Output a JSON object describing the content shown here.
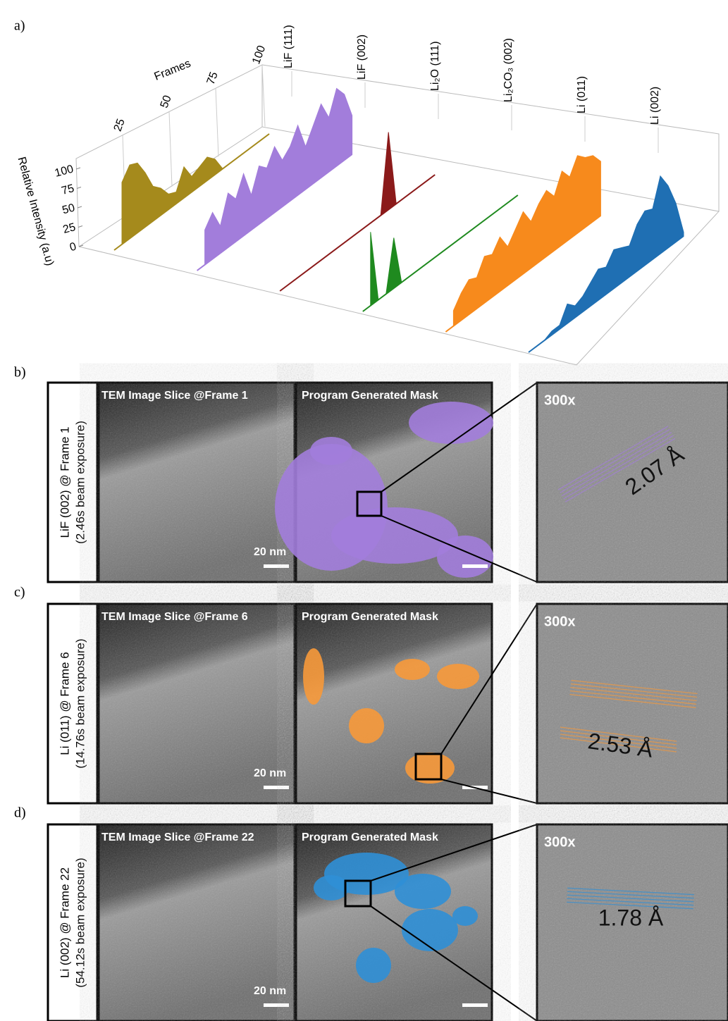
{
  "panel_labels": [
    "a)",
    "b)",
    "c)",
    "d)"
  ],
  "chart_data": {
    "type": "waterfall3d",
    "x_label": "Frames",
    "y_label": "Relative Intensity (a.u)",
    "x": [
      5,
      10,
      15,
      20,
      25,
      30,
      35,
      40,
      45,
      50,
      55,
      60,
      65,
      70,
      75,
      80,
      85,
      90,
      95,
      100
    ],
    "xlim": [
      0,
      100
    ],
    "xticks": [
      25,
      50,
      75,
      100
    ],
    "ylim": [
      0,
      100
    ],
    "yticks": [
      0,
      25,
      50,
      75,
      100
    ],
    "series": [
      {
        "name": "LiF (111)",
        "color": "#a58a1c",
        "values": [
          80,
          95,
          90,
          70,
          45,
          35,
          20,
          15,
          40,
          20,
          25,
          30,
          20,
          0,
          0,
          0,
          0,
          0,
          0,
          0
        ]
      },
      {
        "name": "LiF (002)",
        "color": "#a27ddb",
        "values": [
          45,
          60,
          35,
          70,
          55,
          80,
          45,
          75,
          65,
          85,
          60,
          70,
          90,
          55,
          75,
          95,
          70,
          100,
          85,
          50
        ]
      },
      {
        "name": "Li₂O (111)",
        "color": "#8b1a1a",
        "values": [
          0,
          0,
          0,
          0,
          0,
          0,
          0,
          0,
          0,
          0,
          0,
          0,
          0,
          100,
          0,
          0,
          0,
          0,
          0,
          0
        ]
      },
      {
        "name": "Li₂CO₃ (002)",
        "color": "#1f8a1f",
        "values": [
          95,
          0,
          0,
          65,
          0,
          0,
          0,
          0,
          0,
          0,
          0,
          0,
          0,
          0,
          0,
          0,
          0,
          0,
          0,
          0
        ]
      },
      {
        "name": "Li (011)",
        "color": "#f78a1c",
        "values": [
          20,
          35,
          45,
          40,
          60,
          55,
          70,
          50,
          65,
          80,
          60,
          75,
          85,
          70,
          95,
          80,
          100,
          90,
          85,
          70
        ]
      },
      {
        "name": "Li (002)",
        "color": "#1f6fb3",
        "values": [
          0,
          0,
          5,
          5,
          25,
          15,
          20,
          30,
          40,
          35,
          50,
          45,
          40,
          60,
          70,
          65,
          100,
          80,
          50,
          5
        ]
      }
    ]
  },
  "rows": [
    {
      "label": "LiF (002) @ Frame 1",
      "exposure": "(2.46s beam exposure)",
      "tem_caption": "TEM Image  Slice @Frame 1",
      "mask_caption": "Program Generated Mask",
      "scale": "20 nm",
      "zoom": "300x",
      "spacing": "2.07 Å",
      "mask_color": "#a27ddb"
    },
    {
      "label": "Li (011) @ Frame 6",
      "exposure": "(14.76s beam exposure)",
      "tem_caption": "TEM Image  Slice @Frame 6",
      "mask_caption": "Program Generated Mask",
      "scale": "20 nm",
      "zoom": "300x",
      "spacing": "2.53 Å",
      "mask_color": "#f7993a"
    },
    {
      "label": "Li (002) @ Frame 22",
      "exposure": "(54.12s beam exposure)",
      "tem_caption": "TEM Image  Slice @Frame 22",
      "mask_caption": "Program Generated Mask",
      "scale": "20 nm",
      "zoom": "300x",
      "spacing": "1.78 Å",
      "mask_color": "#2f8fd6"
    }
  ]
}
